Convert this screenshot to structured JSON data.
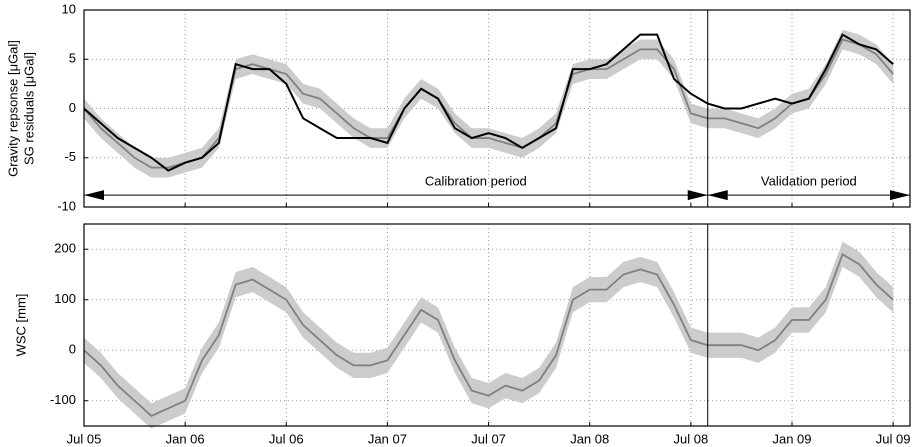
{
  "chart_data": [
    {
      "type": "line",
      "ylabel": [
        "Gravity repsonse [μGal]",
        "SG residuals [μGal]"
      ],
      "x": [
        "2005-07",
        "2005-08",
        "2005-09",
        "2005-10",
        "2005-11",
        "2005-12",
        "2006-01",
        "2006-02",
        "2006-03",
        "2006-04",
        "2006-05",
        "2006-06",
        "2006-07",
        "2006-08",
        "2006-09",
        "2006-10",
        "2006-11",
        "2006-12",
        "2007-01",
        "2007-02",
        "2007-03",
        "2007-04",
        "2007-05",
        "2007-06",
        "2007-07",
        "2007-08",
        "2007-09",
        "2007-10",
        "2007-11",
        "2007-12",
        "2008-01",
        "2008-02",
        "2008-03",
        "2008-04",
        "2008-05",
        "2008-06",
        "2008-07",
        "2008-08",
        "2008-09",
        "2008-10",
        "2008-11",
        "2008-12",
        "2009-01",
        "2009-02",
        "2009-03",
        "2009-04",
        "2009-05",
        "2009-06",
        "2009-07"
      ],
      "xlim": [
        "2005-07",
        "2009-08"
      ],
      "ylim": [
        -10,
        10
      ],
      "yticks": [
        -10,
        -5,
        0,
        5,
        10
      ],
      "grid": true,
      "divider": "2008-08",
      "series": [
        {
          "color": "#000000",
          "values": [
            0,
            -1.5,
            -3,
            -4,
            -5,
            -6.3,
            -5.5,
            -5,
            -3.5,
            4.5,
            4,
            4,
            2.5,
            -1,
            -2,
            -3,
            -3,
            -3,
            -3.5,
            0,
            2,
            1,
            -2,
            -3,
            -2.5,
            -3,
            -4,
            -3,
            -2,
            4,
            4,
            4.5,
            6,
            7.5,
            7.5,
            3,
            1.5,
            0.5,
            0,
            0,
            0.5,
            1,
            0.5,
            1,
            4,
            7.5,
            6.5,
            6,
            4.5
          ]
        },
        {
          "color": "#808080",
          "band_color": "#cccccc",
          "values": [
            0,
            -2,
            -3.5,
            -5,
            -6,
            -6,
            -5.5,
            -5,
            -3,
            4,
            4.5,
            4,
            3.5,
            1.5,
            1,
            -0.5,
            -2,
            -3,
            -3,
            0,
            2,
            1,
            -1.5,
            -3,
            -3,
            -3.5,
            -4,
            -3,
            -1.5,
            3.5,
            4,
            4,
            5,
            6,
            6,
            4,
            -0.5,
            -1,
            -1,
            -1.5,
            -2,
            -1,
            0.5,
            1,
            3.5,
            7,
            6.5,
            5.5,
            3.5
          ],
          "lower": [
            -1,
            -3,
            -4.5,
            -6,
            -7,
            -7,
            -6.5,
            -6,
            -4,
            3,
            3.5,
            3,
            2.5,
            0.5,
            0,
            -1.5,
            -3,
            -4,
            -4,
            -1,
            1,
            0,
            -2.5,
            -4,
            -4,
            -4.5,
            -5,
            -4,
            -2.5,
            2.5,
            3,
            3,
            4,
            5,
            5,
            3,
            -1.5,
            -2,
            -2,
            -2.5,
            -3,
            -2,
            -0.5,
            0,
            2.5,
            6,
            5.5,
            4.5,
            2.5
          ],
          "upper": [
            1,
            -1,
            -2.5,
            -4,
            -5,
            -5,
            -4.5,
            -4,
            -2,
            5,
            5.5,
            5,
            4.5,
            2.5,
            2,
            0.5,
            -1,
            -2,
            -2,
            1,
            3,
            2,
            -0.5,
            -2,
            -2,
            -2.5,
            -3,
            -2,
            -0.5,
            4.5,
            5,
            5,
            6,
            7,
            7,
            5,
            0.5,
            0,
            0,
            -0.5,
            -1,
            0,
            1.5,
            2,
            4.5,
            8,
            7.5,
            6.5,
            4.5
          ]
        }
      ],
      "annotations": [
        {
          "text": "Calibration period",
          "x_start": "2005-07",
          "x_end": "2008-08",
          "y": -8.8
        },
        {
          "text": "Validation period",
          "x_start": "2008-08",
          "x_end": "2009-08",
          "y": -8.8
        }
      ]
    },
    {
      "type": "line",
      "ylabel": [
        "WSC [mm]"
      ],
      "x": [
        "2005-07",
        "2005-08",
        "2005-09",
        "2005-10",
        "2005-11",
        "2005-12",
        "2006-01",
        "2006-02",
        "2006-03",
        "2006-04",
        "2006-05",
        "2006-06",
        "2006-07",
        "2006-08",
        "2006-09",
        "2006-10",
        "2006-11",
        "2006-12",
        "2007-01",
        "2007-02",
        "2007-03",
        "2007-04",
        "2007-05",
        "2007-06",
        "2007-07",
        "2007-08",
        "2007-09",
        "2007-10",
        "2007-11",
        "2007-12",
        "2008-01",
        "2008-02",
        "2008-03",
        "2008-04",
        "2008-05",
        "2008-06",
        "2008-07",
        "2008-08",
        "2008-09",
        "2008-10",
        "2008-11",
        "2008-12",
        "2009-01",
        "2009-02",
        "2009-03",
        "2009-04",
        "2009-05",
        "2009-06",
        "2009-07"
      ],
      "xlim": [
        "2005-07",
        "2009-08"
      ],
      "xticks": [
        {
          "value": "2005-07",
          "label": "Jul 05"
        },
        {
          "value": "2006-01",
          "label": "Jan 06"
        },
        {
          "value": "2006-07",
          "label": "Jul 06"
        },
        {
          "value": "2007-01",
          "label": "Jan 07"
        },
        {
          "value": "2007-07",
          "label": "Jul 07"
        },
        {
          "value": "2008-01",
          "label": "Jan 08"
        },
        {
          "value": "2008-07",
          "label": "Jul 08"
        },
        {
          "value": "2009-01",
          "label": "Jan 09"
        },
        {
          "value": "2009-07",
          "label": "Jul 09"
        }
      ],
      "ylim": [
        -150,
        250
      ],
      "yticks": [
        -100,
        0,
        100,
        200
      ],
      "grid": true,
      "divider": "2008-08",
      "series": [
        {
          "color": "#808080",
          "band_color": "#cccccc",
          "values": [
            0,
            -30,
            -70,
            -100,
            -130,
            -115,
            -100,
            -20,
            30,
            130,
            140,
            120,
            100,
            50,
            20,
            -10,
            -30,
            -30,
            -20,
            30,
            80,
            60,
            -20,
            -80,
            -90,
            -70,
            -80,
            -60,
            -10,
            100,
            120,
            120,
            150,
            160,
            150,
            90,
            20,
            10,
            10,
            10,
            0,
            20,
            60,
            60,
            100,
            190,
            170,
            130,
            100
          ],
          "lower": [
            -25,
            -55,
            -95,
            -125,
            -155,
            -140,
            -125,
            -45,
            5,
            105,
            115,
            95,
            75,
            25,
            -5,
            -35,
            -55,
            -55,
            -45,
            5,
            55,
            35,
            -45,
            -105,
            -115,
            -95,
            -105,
            -85,
            -35,
            75,
            95,
            95,
            125,
            135,
            125,
            65,
            -5,
            -15,
            -15,
            -15,
            -25,
            -5,
            35,
            35,
            75,
            165,
            145,
            105,
            75
          ],
          "upper": [
            25,
            -5,
            -45,
            -75,
            -105,
            -90,
            -75,
            5,
            55,
            155,
            165,
            145,
            125,
            75,
            45,
            15,
            -5,
            -5,
            5,
            55,
            105,
            85,
            5,
            -55,
            -65,
            -45,
            -55,
            -35,
            15,
            125,
            145,
            145,
            175,
            185,
            175,
            115,
            45,
            35,
            35,
            35,
            25,
            45,
            85,
            85,
            125,
            215,
            195,
            155,
            125
          ]
        }
      ]
    }
  ]
}
